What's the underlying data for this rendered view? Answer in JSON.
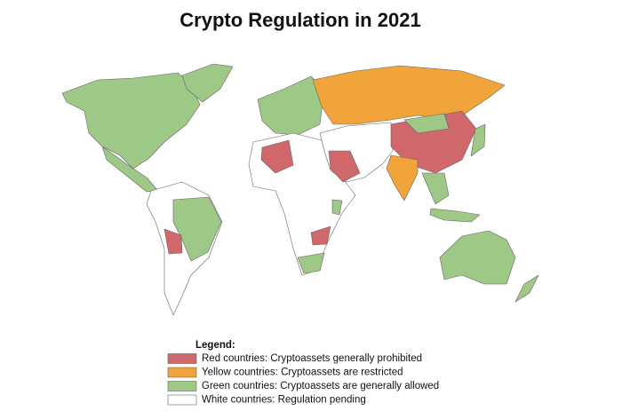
{
  "title": "Crypto Regulation in 2021",
  "legend": {
    "title": "Legend:",
    "items": [
      {
        "label": "Red countries: Cryptoassets generally prohibited",
        "color": "#d0676a"
      },
      {
        "label": "Yellow countries: Cryptoassets are restricted",
        "color": "#f0a43a"
      },
      {
        "label": "Green countries: Cryptoassets are generally allowed",
        "color": "#9dc886"
      },
      {
        "label": "White countries: Regulation pending",
        "color": "#ffffff"
      }
    ]
  }
}
